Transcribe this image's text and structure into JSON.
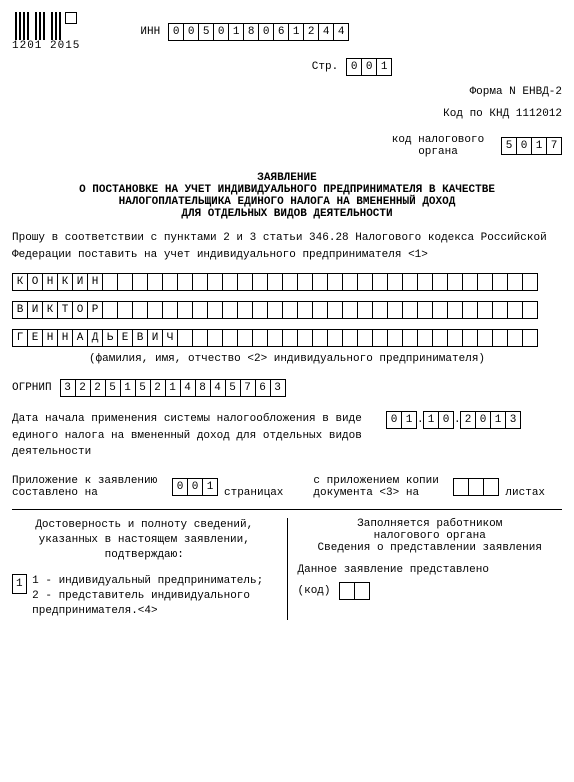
{
  "barcode_label": "1201 2015",
  "inn": {
    "label": "ИНН",
    "cells": [
      "0",
      "0",
      "5",
      "0",
      "1",
      "8",
      "0",
      "6",
      "1",
      "2",
      "4",
      "4"
    ]
  },
  "page": {
    "label": "Стр.",
    "cells": [
      "0",
      "0",
      "1"
    ]
  },
  "form_line": "Форма N ЕНВД-2",
  "knd_line": "Код по КНД 1112012",
  "tax_code": {
    "label": "код налогового органа",
    "cells": [
      "5",
      "0",
      "1",
      "7"
    ]
  },
  "title1": "ЗАЯВЛЕНИЕ",
  "title2": "О ПОСТАНОВКЕ НА УЧЕТ ИНДИВИДУАЛЬНОГО ПРЕДПРИНИМАТЕЛЯ В КАЧЕСТВЕ",
  "title3": "НАЛОГОПЛАТЕЛЬЩИКА ЕДИНОГО НАЛОГА НА ВМЕНЕННЫЙ ДОХОД",
  "title4": "ДЛЯ ОТДЕЛЬНЫХ ВИДОВ ДЕЯТЕЛЬНОСТИ",
  "request_text": "Прошу в соответствии с пунктами 2 и 3 статьи 346.28 Налогового кодекса Российской Федерации поставить на учет индивидуального предпринимателя <1>",
  "surname": [
    "К",
    "О",
    "Н",
    "К",
    "И",
    "Н",
    "",
    "",
    "",
    "",
    "",
    "",
    "",
    "",
    "",
    "",
    "",
    "",
    "",
    "",
    "",
    "",
    "",
    "",
    "",
    "",
    "",
    "",
    "",
    "",
    "",
    "",
    "",
    "",
    ""
  ],
  "name": [
    "В",
    "И",
    "К",
    "Т",
    "О",
    "Р",
    "",
    "",
    "",
    "",
    "",
    "",
    "",
    "",
    "",
    "",
    "",
    "",
    "",
    "",
    "",
    "",
    "",
    "",
    "",
    "",
    "",
    "",
    "",
    "",
    "",
    "",
    "",
    "",
    ""
  ],
  "patronymic": [
    "Г",
    "Е",
    "Н",
    "Н",
    "А",
    "Д",
    "Ь",
    "Е",
    "В",
    "И",
    "Ч",
    "",
    "",
    "",
    "",
    "",
    "",
    "",
    "",
    "",
    "",
    "",
    "",
    "",
    "",
    "",
    "",
    "",
    "",
    "",
    "",
    "",
    "",
    "",
    ""
  ],
  "fio_hint": "(фамилия, имя, отчество <2> индивидуального предпринимателя)",
  "ogrnip": {
    "label": "ОГРНИП",
    "cells": [
      "3",
      "2",
      "2",
      "5",
      "1",
      "5",
      "2",
      "1",
      "4",
      "8",
      "4",
      "5",
      "7",
      "6",
      "3"
    ]
  },
  "date_label": "Дата начала применения системы налогообложения в виде единого налога на вмененный доход для отдельных видов деятельности",
  "date": {
    "d": [
      "0",
      "1"
    ],
    "m": [
      "1",
      "0"
    ],
    "y": [
      "2",
      "0",
      "1",
      "3"
    ]
  },
  "appendix_left_1": "Приложение к заявлению",
  "appendix_left_2": "составлено на",
  "appendix_cells": [
    "0",
    "0",
    "1"
  ],
  "appendix_pages": "страницах",
  "copy_label_1": "с приложением копии",
  "copy_label_2": "документа <3> на",
  "copy_cells": [
    "",
    "",
    ""
  ],
  "copy_pages": "листах",
  "left_block_title": "Достоверность и полноту сведений, указанных в настоящем заявлении, подтверждаю:",
  "left_opt_val": "1",
  "left_opt1": "1 - индивидуальный предприниматель;",
  "left_opt2": "2 - представитель индивидуального предпринимателя.<4>",
  "right_block_title1": "Заполняется работником",
  "right_block_title2": "налогового органа",
  "right_block_title3": "Сведения о представлении заявления",
  "right_sub": "Данное заявление представлено",
  "right_code_label": "(код)",
  "right_code_cells": [
    "",
    ""
  ]
}
